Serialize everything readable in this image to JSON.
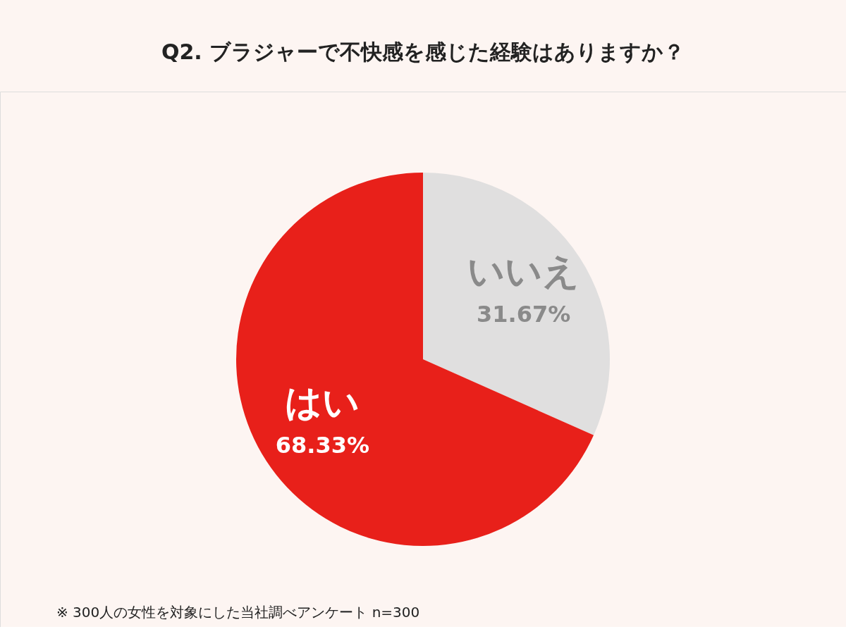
{
  "chart_data": {
    "type": "pie",
    "title": "Q2. ブラジャーで不快感を感じた経験はありますか？",
    "categories": [
      "いいえ",
      "はい"
    ],
    "values": [
      31.67,
      68.33
    ],
    "colors": [
      "#e0dfdf",
      "#e8201a"
    ],
    "value_labels": [
      "31.67%",
      "68.33%"
    ],
    "legend": false,
    "annotations": [
      "※ 300人の女性を対象にした当社調べアンケート n=300"
    ]
  }
}
